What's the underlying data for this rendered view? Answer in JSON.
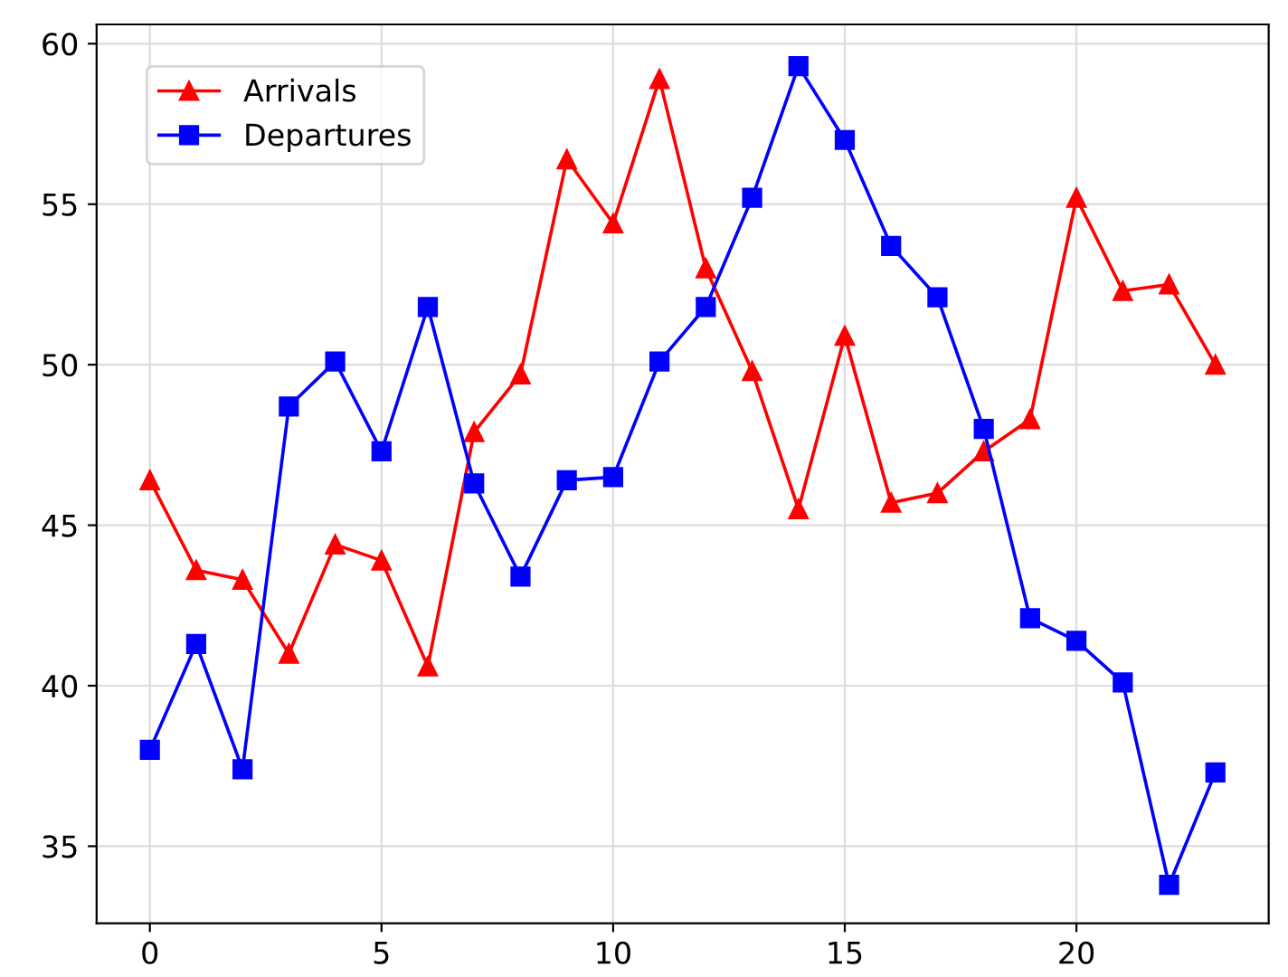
{
  "chart_data": {
    "type": "line",
    "x": [
      0,
      1,
      2,
      3,
      4,
      5,
      6,
      7,
      8,
      9,
      10,
      11,
      12,
      13,
      14,
      15,
      16,
      17,
      18,
      19,
      20,
      21,
      22,
      23
    ],
    "series": [
      {
        "name": "Arrivals",
        "color": "#ff0000",
        "marker": "triangle",
        "values": [
          46.4,
          43.6,
          43.3,
          41.0,
          44.4,
          43.9,
          40.6,
          47.9,
          49.7,
          56.4,
          54.4,
          58.9,
          53.0,
          49.8,
          45.5,
          50.9,
          45.7,
          46.0,
          47.3,
          48.3,
          55.2,
          52.3,
          52.5,
          50.0
        ]
      },
      {
        "name": "Departures",
        "color": "#0000ff",
        "marker": "square",
        "values": [
          38.0,
          41.3,
          37.4,
          48.7,
          50.1,
          47.3,
          51.8,
          46.3,
          43.4,
          46.4,
          46.5,
          50.1,
          51.8,
          55.2,
          59.3,
          57.0,
          53.7,
          52.1,
          48.0,
          42.1,
          41.4,
          40.1,
          33.8,
          37.3
        ]
      }
    ],
    "xlim": [
      -1.15,
      24.15
    ],
    "xticks": [
      0,
      5,
      10,
      15,
      20
    ],
    "ylim": [
      32.6,
      60.6
    ],
    "yticks": [
      35,
      40,
      45,
      50,
      55,
      60
    ],
    "grid": true,
    "legend": "top left",
    "line_style": "solid"
  }
}
